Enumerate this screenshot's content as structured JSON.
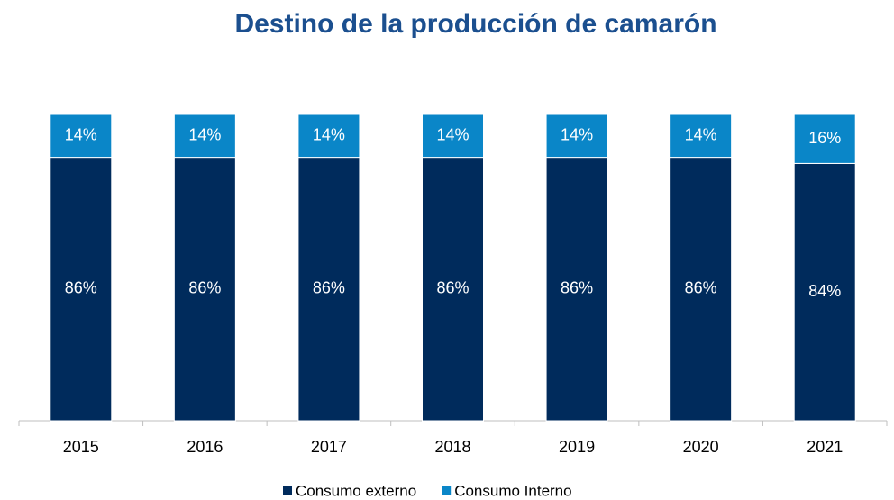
{
  "chart_data": {
    "type": "stacked_bar",
    "title": "Destino de la producción de camarón",
    "categories": [
      "2015",
      "2016",
      "2017",
      "2018",
      "2019",
      "2020",
      "2021"
    ],
    "series": [
      {
        "name": "Consumo externo",
        "color": "#002b5c",
        "values": [
          86,
          86,
          86,
          86,
          86,
          86,
          84
        ],
        "value_labels": [
          "86%",
          "86%",
          "86%",
          "86%",
          "86%",
          "86%",
          "84%"
        ]
      },
      {
        "name": "Consumo Interno",
        "color": "#0a86c8",
        "values": [
          14,
          14,
          14,
          14,
          14,
          14,
          16
        ],
        "value_labels": [
          "14%",
          "14%",
          "14%",
          "14%",
          "14%",
          "14%",
          "16%"
        ]
      }
    ],
    "ylim": [
      0,
      100
    ],
    "legend": "bottom"
  }
}
